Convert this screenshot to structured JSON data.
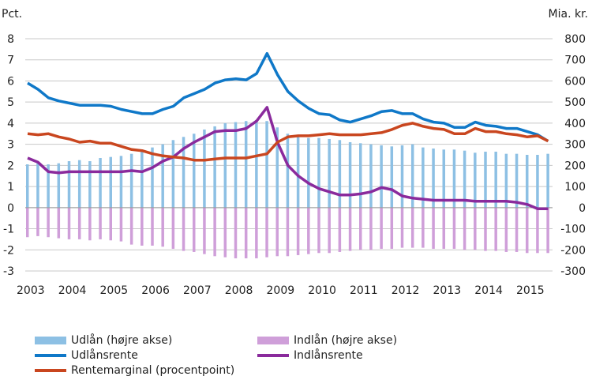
{
  "chart_data": {
    "type": "bar+line",
    "left_axis_label": "Pct.",
    "right_axis_label": "Mia. kr.",
    "ylim_left": [
      -3,
      8
    ],
    "ylim_right": [
      -300,
      800
    ],
    "yticks_left": [
      "8",
      "7",
      "6",
      "5",
      "4",
      "3",
      "2",
      "1",
      "0",
      "-1",
      "-2",
      "-3"
    ],
    "yticks_right": [
      "800",
      "700",
      "600",
      "500",
      "400",
      "300",
      "200",
      "100",
      "0",
      "-100",
      "-200",
      "-300"
    ],
    "xticks": [
      "2003",
      "2004",
      "2005",
      "2006",
      "2007",
      "2008",
      "2009",
      "2010",
      "2011",
      "2012",
      "2013",
      "2014",
      "2015"
    ],
    "x_start": 2003.0,
    "x_step": 0.25,
    "grid": true,
    "legend_position": "bottom",
    "series": [
      {
        "name": "Udlån (højre akse)",
        "kind": "bar",
        "axis": "right",
        "color": "#8dc0e4",
        "values": [
          205,
          210,
          205,
          210,
          220,
          225,
          220,
          235,
          240,
          245,
          255,
          270,
          285,
          300,
          320,
          335,
          350,
          370,
          385,
          400,
          405,
          410,
          415,
          410,
          380,
          350,
          335,
          330,
          330,
          325,
          320,
          310,
          305,
          300,
          295,
          290,
          295,
          300,
          285,
          280,
          275,
          275,
          270,
          260,
          265,
          265,
          255,
          255,
          250,
          250,
          255
        ]
      },
      {
        "name": "Indlån (højre akse)",
        "kind": "bar",
        "axis": "right",
        "color": "#cf9fd9",
        "values": [
          -140,
          -135,
          -140,
          -145,
          -150,
          -150,
          -155,
          -150,
          -155,
          -160,
          -175,
          -180,
          -180,
          -185,
          -195,
          -205,
          -210,
          -220,
          -230,
          -235,
          -240,
          -240,
          -240,
          -235,
          -230,
          -230,
          -225,
          -220,
          -215,
          -215,
          -210,
          -205,
          -200,
          -200,
          -195,
          -195,
          -190,
          -190,
          -190,
          -195,
          -195,
          -195,
          -200,
          -200,
          -205,
          -205,
          -210,
          -210,
          -215,
          -215,
          -215
        ]
      },
      {
        "name": "Udlånsrente",
        "kind": "line",
        "axis": "left",
        "color": "#0f78c8",
        "values": [
          5.9,
          5.6,
          5.2,
          5.05,
          4.95,
          4.85,
          4.85,
          4.85,
          4.8,
          4.65,
          4.55,
          4.45,
          4.45,
          4.65,
          4.8,
          5.2,
          5.4,
          5.6,
          5.9,
          6.05,
          6.1,
          6.05,
          6.35,
          7.3,
          6.3,
          5.5,
          5.05,
          4.7,
          4.45,
          4.4,
          4.15,
          4.05,
          4.2,
          4.35,
          4.55,
          4.6,
          4.45,
          4.45,
          4.2,
          4.05,
          4.0,
          3.8,
          3.8,
          4.05,
          3.9,
          3.85,
          3.75,
          3.75,
          3.6,
          3.45,
          3.15
        ]
      },
      {
        "name": "Indlånsrente",
        "kind": "line",
        "axis": "left",
        "color": "#8a2a9c",
        "values": [
          2.35,
          2.15,
          1.7,
          1.65,
          1.7,
          1.7,
          1.7,
          1.7,
          1.7,
          1.7,
          1.75,
          1.7,
          1.9,
          2.2,
          2.4,
          2.8,
          3.1,
          3.35,
          3.6,
          3.65,
          3.65,
          3.75,
          4.1,
          4.75,
          3.1,
          2.0,
          1.5,
          1.15,
          0.9,
          0.75,
          0.6,
          0.6,
          0.65,
          0.75,
          0.95,
          0.85,
          0.55,
          0.45,
          0.4,
          0.35,
          0.35,
          0.35,
          0.35,
          0.3,
          0.3,
          0.3,
          0.3,
          0.25,
          0.15,
          -0.05,
          -0.05
        ]
      },
      {
        "name": "Rentemarginal (procentpoint)",
        "kind": "line",
        "axis": "left",
        "color": "#c9461f",
        "values": [
          3.5,
          3.45,
          3.5,
          3.35,
          3.25,
          3.1,
          3.15,
          3.05,
          3.05,
          2.9,
          2.75,
          2.7,
          2.55,
          2.45,
          2.4,
          2.35,
          2.25,
          2.25,
          2.3,
          2.35,
          2.35,
          2.35,
          2.45,
          2.55,
          3.1,
          3.35,
          3.4,
          3.4,
          3.45,
          3.5,
          3.45,
          3.45,
          3.45,
          3.5,
          3.55,
          3.7,
          3.9,
          4.0,
          3.85,
          3.75,
          3.7,
          3.5,
          3.5,
          3.75,
          3.6,
          3.6,
          3.5,
          3.45,
          3.35,
          3.4,
          3.15
        ]
      }
    ]
  }
}
